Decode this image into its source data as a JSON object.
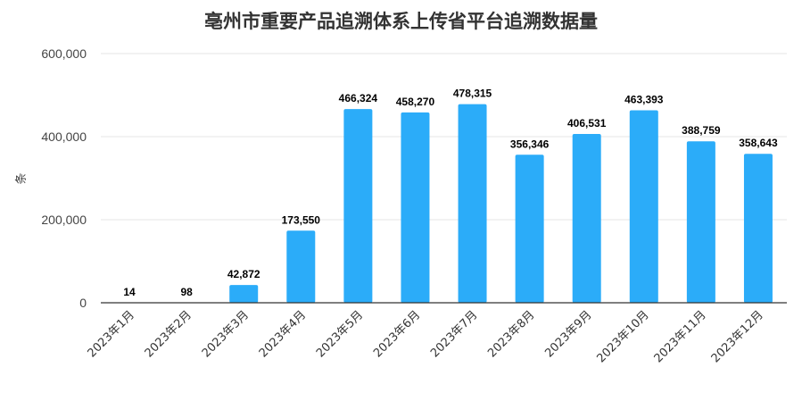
{
  "chart_data": {
    "type": "bar",
    "title": "亳州市重要产品追溯体系上传省平台追溯数据量",
    "ylabel": "条",
    "xlabel": "",
    "ylim": [
      0,
      600000
    ],
    "yticks": [
      0,
      200000,
      400000,
      600000
    ],
    "ytick_labels": [
      "0",
      "200,000",
      "400,000",
      "600,000"
    ],
    "categories": [
      "2023年1月",
      "2023年2月",
      "2023年3月",
      "2023年4月",
      "2023年5月",
      "2023年6月",
      "2023年7月",
      "2023年8月",
      "2023年9月",
      "2023年10月",
      "2023年11月",
      "2023年12月"
    ],
    "values": [
      14,
      98,
      42872,
      173550,
      466324,
      458270,
      478315,
      356346,
      406531,
      463393,
      388759,
      358643
    ],
    "value_labels": [
      "14",
      "98",
      "42,872",
      "173,550",
      "466,324",
      "458,270",
      "478,315",
      "356,346",
      "406,531",
      "463,393",
      "388,759",
      "358,643"
    ],
    "grid": true,
    "legend": "none",
    "colors": {
      "bar": "#2bacf9",
      "grid": "#e6e6e6",
      "axis": "#333333"
    }
  }
}
